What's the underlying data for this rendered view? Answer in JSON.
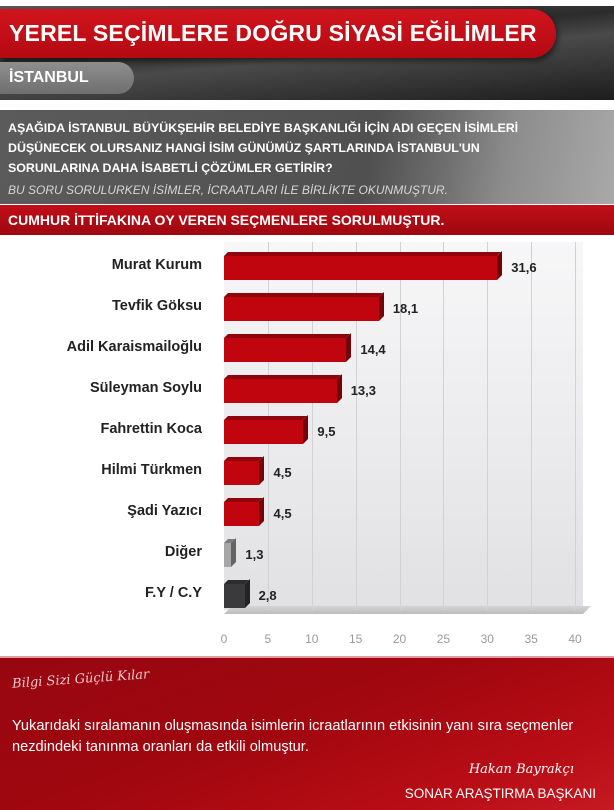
{
  "header": {
    "title": "YEREL SEÇİMLERE DOĞRU SİYASİ EĞİLİMLER",
    "city": "İSTANBUL",
    "colors": {
      "primary_red": "#c10f18",
      "dark": "#2c2c2c",
      "gray": "#6f6f6f"
    }
  },
  "question": {
    "text": "AŞAĞIDA İSTANBUL BÜYÜKŞEHİR BELEDİYE BAŞKANLIĞI İÇİN ADI GEÇEN İSİMLERİ DÜŞÜNECEK OLURSANIZ HANGİ İSİM GÜNÜMÜZ ŞARTLARINDA İSTANBUL'UN SORUNLARINA DAHA İSABETLİ ÇÖZÜMLER GETİRİR?",
    "note": "BU SORU SORULURKEN İSİMLER, İCRAATLARI İLE BİRLİKTE OKUNMUŞTUR.",
    "subtitle": "CUMHUR İTTİFAKINA OY VEREN SEÇMENLERE SORULMUŞTUR."
  },
  "chart_data": {
    "type": "bar",
    "orientation": "horizontal",
    "title": "CUMHUR İTTİFAKINA OY VEREN SEÇMENLERE SORULMUŞTUR.",
    "categories": [
      "Murat Kurum",
      "Tevfik Göksu",
      "Adil Karaismailoğlu",
      "Süleyman Soylu",
      "Fahrettin Koca",
      "Hilmi Türkmen",
      "Şadi Yazıcı",
      "Diğer",
      "F.Y / C.Y"
    ],
    "values": [
      31.6,
      18.1,
      14.4,
      13.3,
      9.5,
      4.5,
      4.5,
      1.3,
      2.8
    ],
    "value_labels": [
      "31,6",
      "18,1",
      "14,4",
      "13,3",
      "9,5",
      "4,5",
      "4,5",
      "1,3",
      "2,8"
    ],
    "bar_colors": [
      "#c0050f",
      "#c0050f",
      "#c0050f",
      "#c0050f",
      "#c0050f",
      "#c0050f",
      "#c0050f",
      "#a6a6a6",
      "#3a3a3c"
    ],
    "xlabel": "",
    "ylabel": "",
    "xlim": [
      0,
      40
    ],
    "xticks": [
      "0",
      "5",
      "10",
      "15",
      "20",
      "25",
      "30",
      "35",
      "40"
    ],
    "grid": true,
    "legend": "none",
    "style": "3d"
  },
  "footer": {
    "tagline": "Bilgi Sizi Güçlü Kılar",
    "note": "Yukarıdaki sıralamanın oluşmasında isimlerin icraatlarının etkisinin yanı sıra seçmenler nezdindeki tanınma oranları da etkili olmuştur.",
    "signature": "Hakan Bayrakçı",
    "signature_title": "SONAR ARAŞTIRMA BAŞKANI"
  }
}
